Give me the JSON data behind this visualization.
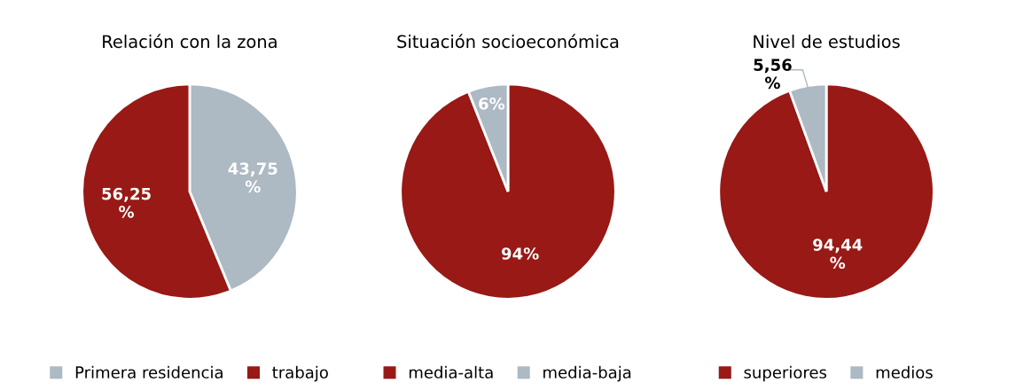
{
  "chart_data": [
    {
      "type": "pie",
      "title": "Relación con la zona",
      "categories": [
        "Primera residencia",
        "trabajo"
      ],
      "values": [
        43.75,
        56.25
      ],
      "colors": [
        "#adb9c3",
        "#981915"
      ],
      "value_labels": [
        "43,75\n%",
        "56,25\n%"
      ],
      "legend": "bottom"
    },
    {
      "type": "pie",
      "title": "Situación socioeconómica",
      "categories": [
        "media-alta",
        "media-baja"
      ],
      "values": [
        94,
        6
      ],
      "colors": [
        "#981915",
        "#adb9c3"
      ],
      "value_labels": [
        "94%",
        "6%"
      ],
      "legend": "bottom"
    },
    {
      "type": "pie",
      "title": "Nivel de estudios",
      "categories": [
        "superiores",
        "medios"
      ],
      "values": [
        94.44,
        5.56
      ],
      "colors": [
        "#981915",
        "#adb9c3"
      ],
      "value_labels": [
        "94,44\n%",
        "5,56\n%"
      ],
      "legend": "bottom"
    }
  ]
}
